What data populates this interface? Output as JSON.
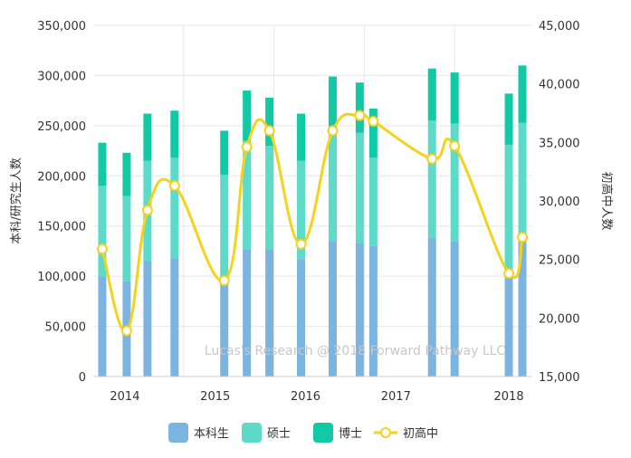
{
  "chart_data": {
    "type": "bar",
    "watermark": "Lucas's Research @ 2018 Forward Pathway LLC",
    "xlabel": "",
    "ylabel_left": "本科/研究生人数",
    "ylabel_right": "初高中人数",
    "ylim_left": [
      0,
      350000
    ],
    "ylim_right": [
      15000,
      45000
    ],
    "y_ticks_left": [
      "0",
      "50,000",
      "100,000",
      "150,000",
      "200,000",
      "250,000",
      "300,000",
      "350,000"
    ],
    "y_ticks_right": [
      "15,000",
      "20,000",
      "25,000",
      "30,000",
      "35,000",
      "40,000",
      "45,000"
    ],
    "x_tick_labels": [
      "2014",
      "2015",
      "2016",
      "2017",
      "2018"
    ],
    "legend_position": "bottom",
    "colors": {
      "本科生": "#7cb4e0",
      "硕士": "#5ddbc8",
      "博士": "#12c9a6",
      "初高中": "#f5d21b"
    },
    "series": [
      {
        "name": "本科生",
        "type": "bar",
        "axis": "left",
        "values": [
          100000,
          95000,
          115000,
          118000,
          93000,
          127000,
          127000,
          117000,
          135000,
          133000,
          130000,
          138000,
          135000,
          100000,
          135000
        ]
      },
      {
        "name": "硕士",
        "type": "bar",
        "axis": "left",
        "values": [
          90000,
          85000,
          100000,
          100000,
          108000,
          108000,
          103000,
          98000,
          110000,
          110000,
          88000,
          117000,
          117000,
          131000,
          118000
        ]
      },
      {
        "name": "博士",
        "type": "bar",
        "axis": "left",
        "values": [
          43000,
          43000,
          47000,
          47000,
          44000,
          50000,
          48000,
          47000,
          54000,
          50000,
          49000,
          52000,
          51000,
          51000,
          57000
        ]
      },
      {
        "name": "初高中",
        "type": "line",
        "axis": "right",
        "values": [
          25900,
          18900,
          29200,
          31300,
          23200,
          34600,
          36000,
          26300,
          36000,
          37300,
          36800,
          33600,
          34700,
          23800,
          26900
        ]
      }
    ],
    "x_positions": [
      0.1,
      0.37,
      0.6,
      0.9,
      1.45,
      1.7,
      1.95,
      2.3,
      2.65,
      2.95,
      3.1,
      3.75,
      4.0,
      4.6,
      4.75
    ]
  }
}
